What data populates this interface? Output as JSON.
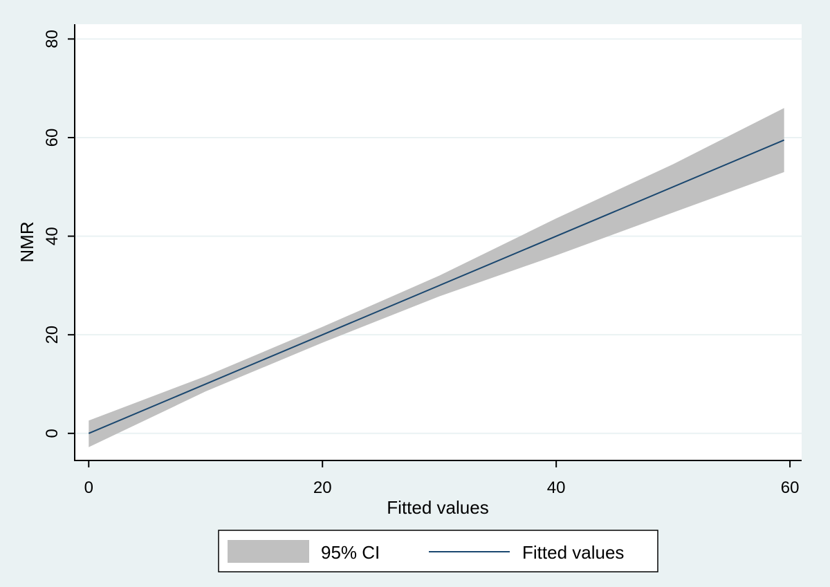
{
  "colors": {
    "background": "#eaf2f3",
    "plot_background": "#ffffff",
    "gridline": "#eaf2f3",
    "ci_fill": "#c0c0c0",
    "fit_line": "#1a476f",
    "axis": "#000000"
  },
  "chart_data": {
    "type": "line",
    "title": "",
    "xlabel": "Fitted values",
    "ylabel": "NMR",
    "xlim": [
      -1.2,
      61
    ],
    "ylim": [
      -5.5,
      83
    ],
    "x_ticks": [
      0,
      20,
      40,
      60
    ],
    "y_ticks": [
      0,
      20,
      40,
      60,
      80
    ],
    "grid": true,
    "legend_position": "bottom",
    "series": [
      {
        "name": "95% CI",
        "kind": "band",
        "x": [
          0,
          10,
          20,
          30,
          40,
          50,
          59.5
        ],
        "lower": [
          -2.8,
          8.5,
          18.4,
          27.8,
          36.1,
          44.8,
          53.0
        ],
        "upper": [
          2.6,
          11.6,
          21.6,
          32.0,
          43.6,
          54.6,
          66.0
        ]
      },
      {
        "name": "Fitted values",
        "kind": "line",
        "x": [
          0,
          59.5
        ],
        "y": [
          0,
          59.5
        ]
      }
    ]
  }
}
